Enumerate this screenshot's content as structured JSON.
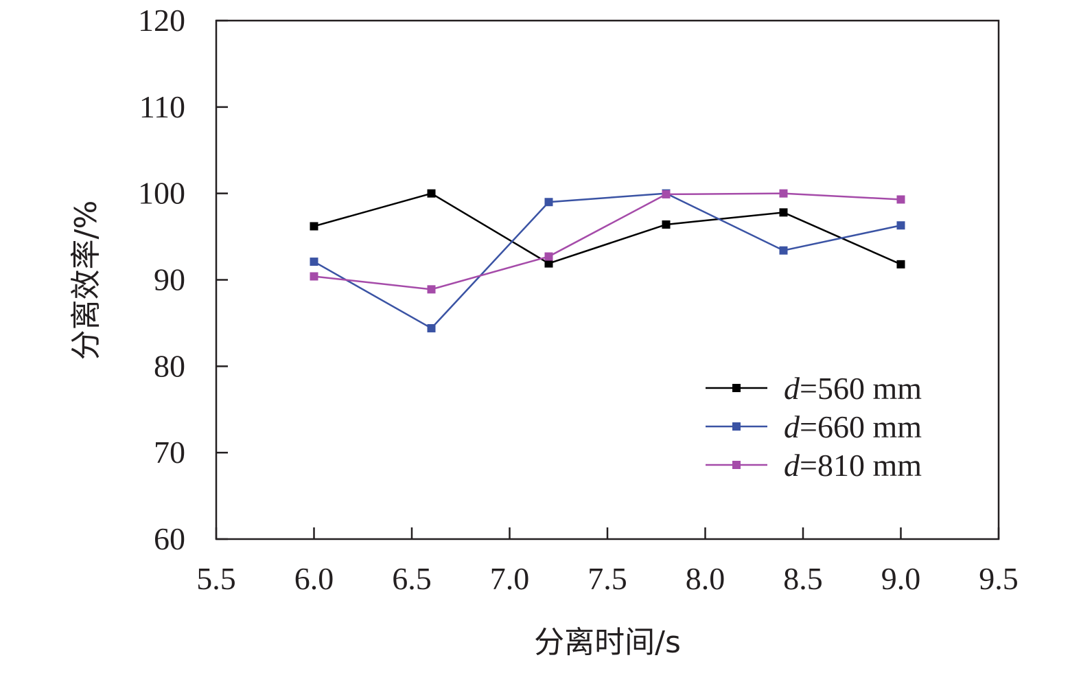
{
  "chart_data": {
    "type": "line",
    "xlabel": "分离时间/s",
    "ylabel": "分离效率/%",
    "xlim": [
      5.5,
      9.5
    ],
    "ylim": [
      60,
      120
    ],
    "xticks": [
      5.5,
      6.0,
      6.5,
      7.0,
      7.5,
      8.0,
      8.5,
      9.0,
      9.5
    ],
    "xtick_labels": [
      "5.5",
      "6.0",
      "6.5",
      "7.0",
      "7.5",
      "8.0",
      "8.5",
      "9.0",
      "9.5"
    ],
    "yticks": [
      60,
      70,
      80,
      90,
      100,
      110,
      120
    ],
    "ytick_labels": [
      "60",
      "70",
      "80",
      "90",
      "100",
      "110",
      "120"
    ],
    "grid": false,
    "legend_position": "bottom-right",
    "x": [
      6.0,
      6.6,
      7.2,
      7.8,
      8.4,
      9.0
    ],
    "series": [
      {
        "name_var": "d",
        "name_rest": "=560 mm",
        "color": "#000000",
        "values": [
          96.2,
          100.0,
          91.9,
          96.4,
          97.8,
          91.8
        ]
      },
      {
        "name_var": "d",
        "name_rest": "=660 mm",
        "color": "#3a53a4",
        "values": [
          92.1,
          84.4,
          99.0,
          100.0,
          93.4,
          96.3
        ]
      },
      {
        "name_var": "d",
        "name_rest": "=810 mm",
        "color": "#a54ba9",
        "values": [
          90.4,
          88.9,
          92.7,
          99.9,
          100.0,
          99.3
        ]
      }
    ]
  }
}
